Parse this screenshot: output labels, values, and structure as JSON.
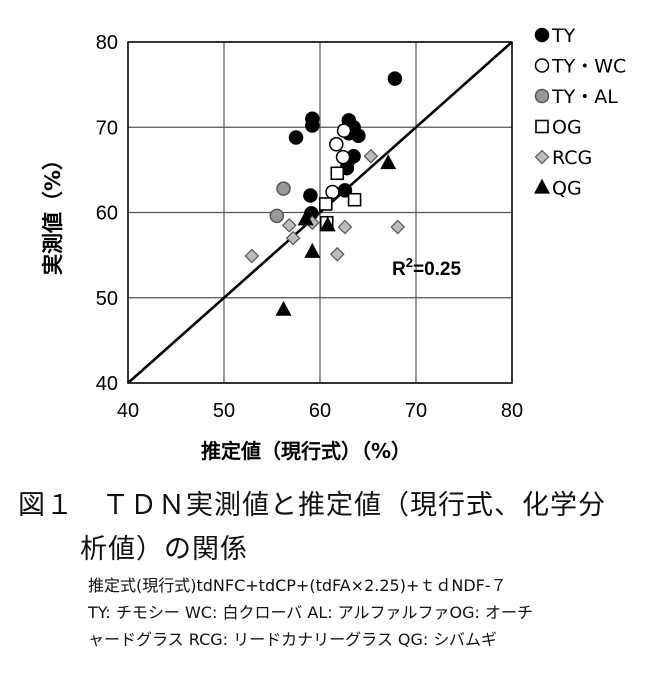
{
  "chart_data": {
    "type": "scatter",
    "ylabel": "実測値（%）",
    "xlabel": "推定値（現行式）（%）",
    "xlim": [
      40,
      80
    ],
    "ylim": [
      40,
      80
    ],
    "xticks": [
      "40",
      "50",
      "60",
      "70",
      "80"
    ],
    "yticks": [
      "40",
      "50",
      "60",
      "70",
      "80"
    ],
    "grid": true,
    "legend_position": "right-outside",
    "annotation": "R²=0.25",
    "reference_line": {
      "x": [
        40,
        80
      ],
      "y": [
        40,
        80
      ]
    },
    "series": [
      {
        "name": "TY",
        "marker": "circle",
        "fill": "#000000",
        "stroke": "#000000",
        "points": [
          [
            57.5,
            68.8
          ],
          [
            59.2,
            71.0
          ],
          [
            59.2,
            70.2
          ],
          [
            63.0,
            70.8
          ],
          [
            63.0,
            69.3
          ],
          [
            63.5,
            70.0
          ],
          [
            64.0,
            69.0
          ],
          [
            63.5,
            66.6
          ],
          [
            63.0,
            66.2
          ],
          [
            62.8,
            65.2
          ],
          [
            62.6,
            62.6
          ],
          [
            59.0,
            62.0
          ],
          [
            59.1,
            59.9
          ],
          [
            67.8,
            75.7
          ]
        ]
      },
      {
        "name": "TY・WC",
        "marker": "circle",
        "fill": "#ffffff",
        "stroke": "#000000",
        "points": [
          [
            62.5,
            69.6
          ],
          [
            61.7,
            68.0
          ],
          [
            62.4,
            66.5
          ],
          [
            61.3,
            62.4
          ]
        ]
      },
      {
        "name": "TY・AL",
        "marker": "circle",
        "fill": "#999999",
        "stroke": "#555555",
        "points": [
          [
            56.2,
            62.8
          ],
          [
            55.5,
            59.6
          ]
        ]
      },
      {
        "name": "OG",
        "marker": "square",
        "fill": "#ffffff",
        "stroke": "#000000",
        "points": [
          [
            61.8,
            64.6
          ],
          [
            63.6,
            61.5
          ],
          [
            60.6,
            61.0
          ],
          [
            60.7,
            58.8
          ]
        ]
      },
      {
        "name": "RCG",
        "marker": "diamond",
        "fill": "#bbbbbb",
        "stroke": "#555555",
        "points": [
          [
            52.9,
            54.9
          ],
          [
            56.8,
            58.5
          ],
          [
            57.2,
            57.0
          ],
          [
            61.8,
            55.1
          ],
          [
            62.6,
            58.3
          ],
          [
            65.3,
            66.6
          ],
          [
            68.1,
            58.3
          ],
          [
            59.2,
            58.8
          ]
        ]
      },
      {
        "name": "QG",
        "marker": "triangle",
        "fill": "#000000",
        "stroke": "#000000",
        "points": [
          [
            56.2,
            48.6
          ],
          [
            59.2,
            55.4
          ],
          [
            58.5,
            59.2
          ],
          [
            60.8,
            58.5
          ],
          [
            67.1,
            65.8
          ]
        ]
      }
    ]
  },
  "caption": {
    "title_line1": "図１　ＴＤＮ実測値と推定値（現行式、化学分",
    "title_line2": "析値）の関係",
    "note_line1": "推定式(現行式)tdNFC+tdCP+(tdFA×2.25)+ｔｄNDF-７",
    "note_line2": "TY: チモシー WC: 白クローバ AL: アルファルファOG: オーチ",
    "note_line3": "ャードグラス RCG: リードカナリーグラス QG: シバムギ"
  }
}
